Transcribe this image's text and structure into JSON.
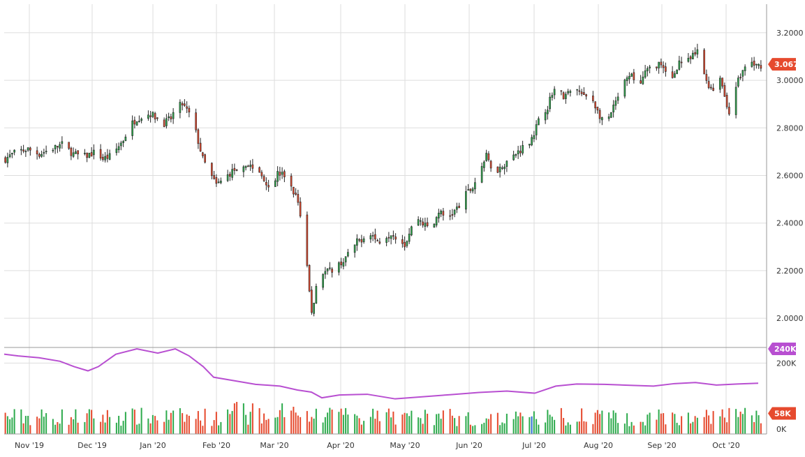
{
  "colors": {
    "up": "#2eab4d",
    "down": "#e64a2e",
    "volume_highlight": "#2e6fd6",
    "avg_line": "#b84fd1",
    "price_badge": "#e64a2e",
    "avg_badge": "#b84fd1",
    "volume_badge": "#e64a2e",
    "grid": "#dddddd",
    "axis": "#999999",
    "text": "#333333"
  },
  "chart_data": {
    "type": "candlestick",
    "title": "",
    "xlabel": "",
    "ylabel": "",
    "x_ticks": [
      "Nov '19",
      "Dec '19",
      "Jan '20",
      "Feb '20",
      "Mar '20",
      "Apr '20",
      "May '20",
      "Jun '20",
      "Jul '20",
      "Aug '20",
      "Sep '20",
      "Oct '20"
    ],
    "price_ticks": [
      "2.0000",
      "2.2000",
      "2.4000",
      "2.6000",
      "2.8000",
      "3.0000",
      "3.2000"
    ],
    "price_ylim": [
      1.88,
      3.32
    ],
    "volume_ticks": [
      "0K",
      "200K"
    ],
    "volume_ylim": [
      0,
      240
    ],
    "last_price_label": "3.0675",
    "last_price": 3.0675,
    "avg_volume_label": "240K",
    "avg_volume": 240,
    "last_volume_label": "58K",
    "last_volume": 58,
    "grid": true,
    "price_points": [
      [
        0,
        2.67
      ],
      [
        5,
        2.7
      ],
      [
        10,
        2.71
      ],
      [
        15,
        2.69
      ],
      [
        20,
        2.71
      ],
      [
        25,
        2.73
      ],
      [
        30,
        2.69
      ],
      [
        35,
        2.68
      ],
      [
        40,
        2.7
      ],
      [
        43,
        2.67
      ],
      [
        46,
        2.68
      ],
      [
        49,
        2.71
      ],
      [
        52,
        2.75
      ],
      [
        55,
        2.81
      ],
      [
        58,
        2.84
      ],
      [
        61,
        2.85
      ],
      [
        64,
        2.86
      ],
      [
        67,
        2.84
      ],
      [
        70,
        2.82
      ],
      [
        73,
        2.84
      ],
      [
        75,
        2.88
      ],
      [
        78,
        2.9
      ],
      [
        81,
        2.86
      ],
      [
        84,
        2.78
      ],
      [
        87,
        2.67
      ],
      [
        90,
        2.61
      ],
      [
        93,
        2.56
      ],
      [
        96,
        2.58
      ],
      [
        99,
        2.61
      ],
      [
        102,
        2.63
      ],
      [
        105,
        2.65
      ],
      [
        108,
        2.64
      ],
      [
        111,
        2.62
      ],
      [
        114,
        2.59
      ],
      [
        117,
        2.54
      ],
      [
        120,
        2.61
      ],
      [
        123,
        2.6
      ],
      [
        126,
        2.55
      ],
      [
        129,
        2.49
      ],
      [
        132,
        2.33
      ],
      [
        134,
        2.11
      ],
      [
        135,
        2.02
      ],
      [
        137,
        2.13
      ],
      [
        140,
        2.19
      ],
      [
        143,
        2.2
      ],
      [
        146,
        2.22
      ],
      [
        149,
        2.24
      ],
      [
        152,
        2.28
      ],
      [
        155,
        2.32
      ],
      [
        158,
        2.34
      ],
      [
        161,
        2.36
      ],
      [
        164,
        2.32
      ],
      [
        167,
        2.34
      ],
      [
        170,
        2.36
      ],
      [
        173,
        2.34
      ],
      [
        176,
        2.31
      ],
      [
        179,
        2.38
      ],
      [
        182,
        2.42
      ],
      [
        185,
        2.39
      ],
      [
        188,
        2.37
      ],
      [
        191,
        2.45
      ],
      [
        194,
        2.42
      ],
      [
        197,
        2.44
      ],
      [
        200,
        2.47
      ],
      [
        203,
        2.52
      ],
      [
        206,
        2.55
      ],
      [
        209,
        2.62
      ],
      [
        212,
        2.68
      ],
      [
        215,
        2.62
      ],
      [
        218,
        2.63
      ],
      [
        221,
        2.66
      ],
      [
        224,
        2.68
      ],
      [
        227,
        2.71
      ],
      [
        230,
        2.73
      ],
      [
        233,
        2.78
      ],
      [
        236,
        2.85
      ],
      [
        239,
        2.89
      ],
      [
        241,
        2.95
      ],
      [
        243,
        2.97
      ],
      [
        246,
        2.93
      ],
      [
        249,
        2.95
      ],
      [
        252,
        2.96
      ],
      [
        255,
        2.93
      ],
      [
        258,
        2.94
      ],
      [
        261,
        2.87
      ],
      [
        264,
        2.81
      ],
      [
        267,
        2.86
      ],
      [
        270,
        2.93
      ],
      [
        273,
        2.99
      ],
      [
        276,
        3.02
      ],
      [
        279,
        2.97
      ],
      [
        282,
        3.03
      ],
      [
        285,
        3.06
      ],
      [
        288,
        3.07
      ],
      [
        291,
        3.03
      ],
      [
        294,
        3.01
      ],
      [
        297,
        3.08
      ],
      [
        300,
        3.07
      ],
      [
        303,
        3.1
      ],
      [
        305,
        3.12
      ],
      [
        307,
        3.05
      ],
      [
        310,
        2.98
      ],
      [
        312,
        2.96
      ],
      [
        315,
        3.02
      ],
      [
        318,
        2.89
      ],
      [
        320,
        2.85
      ],
      [
        322,
        2.98
      ],
      [
        325,
        3.04
      ],
      [
        328,
        3.08
      ],
      [
        331,
        3.06
      ],
      [
        334,
        3.0675
      ]
    ]
  }
}
